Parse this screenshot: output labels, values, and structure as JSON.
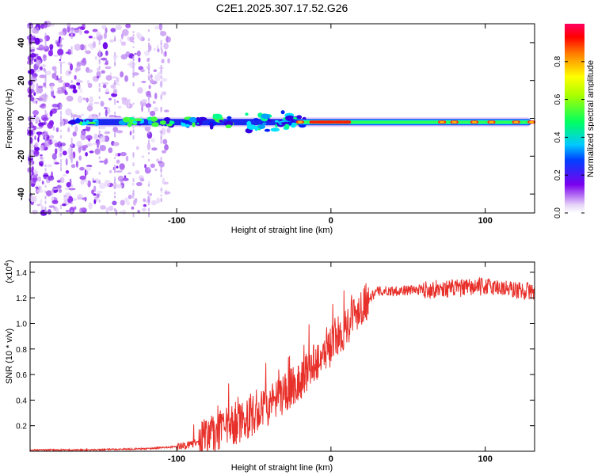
{
  "title": "C2E1.2025.307.17.52.G26",
  "chart_data": [
    {
      "type": "heatmap",
      "xlabel": "Height of straight line (km)",
      "ylabel": "Frequency (Hz)",
      "xlim": [
        -195,
        132
      ],
      "ylim": [
        -50,
        50
      ],
      "xticks": [
        -100,
        0,
        100
      ],
      "yticks": [
        -40,
        -20,
        0,
        20,
        40
      ],
      "colorbar": {
        "label": "Normalized spectral amplitude",
        "range": [
          0,
          1
        ],
        "ticks": [
          0.0,
          0.2,
          0.4,
          0.6,
          0.8
        ]
      },
      "features": [
        {
          "name": "diffuse noise",
          "x_range": [
            -195,
            -105
          ],
          "y_range": [
            -50,
            50
          ]
        },
        {
          "name": "narrow band",
          "x_range": [
            -160,
            130
          ],
          "center_freq": -2,
          "peak_amplitude": 1.0
        }
      ]
    },
    {
      "type": "line",
      "xlabel": "Height of straight line (km)",
      "ylabel": "SNR (10 * v/v)",
      "scale_label": "(x10",
      "scale_exp": "4",
      "xlim": [
        -195,
        132
      ],
      "ylim": [
        0,
        1.48
      ],
      "xticks": [
        -100,
        0,
        100
      ],
      "yticks": [
        0.2,
        0.4,
        0.6,
        0.8,
        1.0,
        1.2,
        1.4
      ],
      "series": [
        {
          "name": "SNR",
          "x": [
            -195,
            -160,
            -120,
            -95,
            -85,
            -80,
            -70,
            -60,
            -50,
            -40,
            -30,
            -20,
            -10,
            0,
            10,
            20,
            30,
            50,
            70,
            90,
            100,
            110,
            120,
            132
          ],
          "y": [
            0.01,
            0.01,
            0.02,
            0.04,
            0.08,
            0.12,
            0.17,
            0.22,
            0.28,
            0.35,
            0.45,
            0.55,
            0.7,
            0.82,
            0.98,
            1.15,
            1.25,
            1.26,
            1.27,
            1.28,
            1.29,
            1.28,
            1.26,
            1.25
          ]
        }
      ]
    }
  ]
}
